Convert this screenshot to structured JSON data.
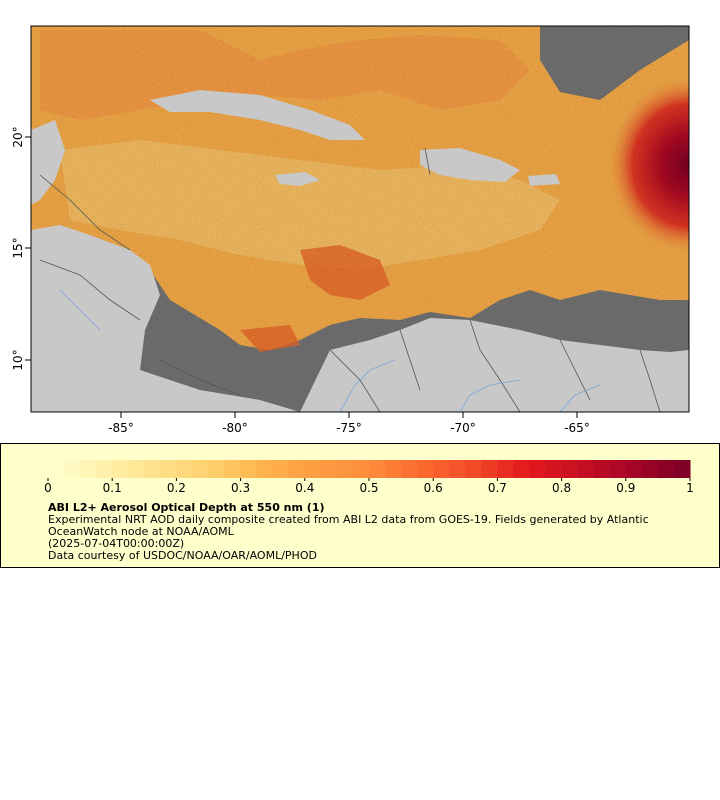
{
  "map": {
    "lon_labels": [
      "-85°",
      "-80°",
      "-75°",
      "-70°",
      "-65°"
    ],
    "lat_labels": [
      "20°",
      "15°",
      "10°"
    ],
    "colors": {
      "nodata": "#777777",
      "land": "#c8c8c8",
      "rivers": "#7aa6d8",
      "borders": "#555555"
    }
  },
  "colorbar": {
    "ticks": [
      "0",
      "0.1",
      "0.2",
      "0.3",
      "0.4",
      "0.5",
      "0.6",
      "0.7",
      "0.8",
      "0.9",
      "1"
    ],
    "range": [
      0,
      1
    ],
    "palette": [
      "#ffffcc",
      "#fff0a8",
      "#fee089",
      "#fed06c",
      "#feb24c",
      "#fd9c42",
      "#fd8d3c",
      "#fc6a2f",
      "#f34a28",
      "#e31a1c",
      "#c80f22",
      "#a70526",
      "#800026"
    ]
  },
  "legend": {
    "title": "ABI L2+ Aerosol Optical Depth at 550 nm (1)",
    "line1": "Experimental NRT AOD daily composite created from ABI L2 data from GOES-19. Fields generated by Atlantic",
    "line2": "OceanWatch node at NOAA/AOML",
    "line3": "(2025-07-04T00:00:00Z)",
    "line4": "Data courtesy of USDOC/NOAA/OAR/AOML/PHOD"
  }
}
